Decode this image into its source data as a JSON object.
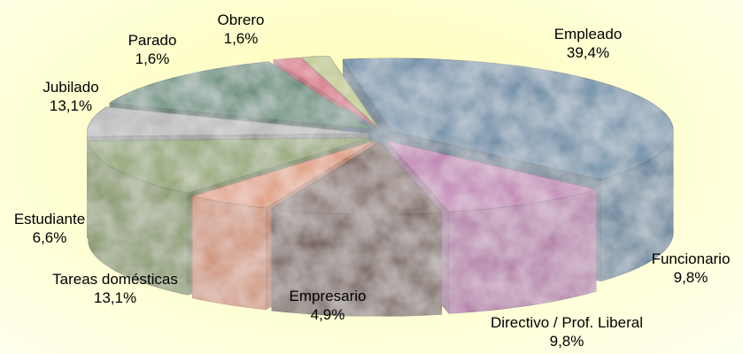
{
  "chart_data": {
    "type": "pie",
    "style": "3d-exploded",
    "slices": [
      {
        "label": "Empleado",
        "value": 39.4,
        "value_label": "39,4%",
        "color": "#6f8fa8"
      },
      {
        "label": "Funcionario",
        "value": 9.8,
        "value_label": "9,8%",
        "color": "#c084b4"
      },
      {
        "label": "Directivo / Prof. Liberal",
        "value": 9.8,
        "value_label": "9,8%",
        "color": "#806a63"
      },
      {
        "label": "Empresario",
        "value": 4.9,
        "value_label": "4,9%",
        "color": "#df9b7d"
      },
      {
        "label": "Tareas domésticas",
        "value": 13.1,
        "value_label": "13,1%",
        "color": "#8ba066"
      },
      {
        "label": "Estudiante",
        "value": 6.6,
        "value_label": "6,6%",
        "color": "#b5b5b5"
      },
      {
        "label": "Jubilado",
        "value": 13.1,
        "value_label": "13,1%",
        "color": "#5f8a78"
      },
      {
        "label": "Parado",
        "value": 1.6,
        "value_label": "1,6%",
        "color": "#d65870"
      },
      {
        "label": "Obrero",
        "value": 1.6,
        "value_label": "1,6%",
        "color": "#b9c47e"
      }
    ],
    "title": "",
    "legend": "none"
  }
}
